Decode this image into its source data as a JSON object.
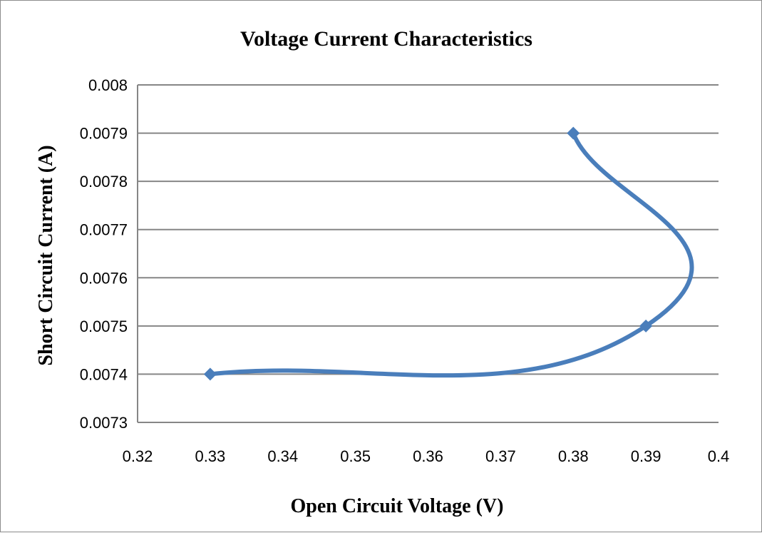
{
  "chart_data": {
    "type": "scatter",
    "title": "Voltage Current Characteristics",
    "xlabel": "Open Circuit Voltage (V)",
    "ylabel": "Short Circuit  Current (A)",
    "xlim": [
      0.32,
      0.4
    ],
    "ylim": [
      0.0073,
      0.008
    ],
    "x_ticks": [
      "0.32",
      "0.33",
      "0.34",
      "0.35",
      "0.36",
      "0.37",
      "0.38",
      "0.39",
      "0.4"
    ],
    "y_ticks": [
      "0.0073",
      "0.0074",
      "0.0075",
      "0.0076",
      "0.0077",
      "0.0078",
      "0.0079",
      "0.008"
    ],
    "grid": "horizontal major",
    "smoothed_line": true,
    "marker": "diamond",
    "series": [
      {
        "points": [
          {
            "x": 0.38,
            "y": 0.0079
          },
          {
            "x": 0.39,
            "y": 0.0075
          },
          {
            "x": 0.33,
            "y": 0.0074
          }
        ]
      }
    ],
    "colors": {
      "series": "#4a7ebb",
      "grid": "#868686",
      "axis": "#868686"
    }
  }
}
